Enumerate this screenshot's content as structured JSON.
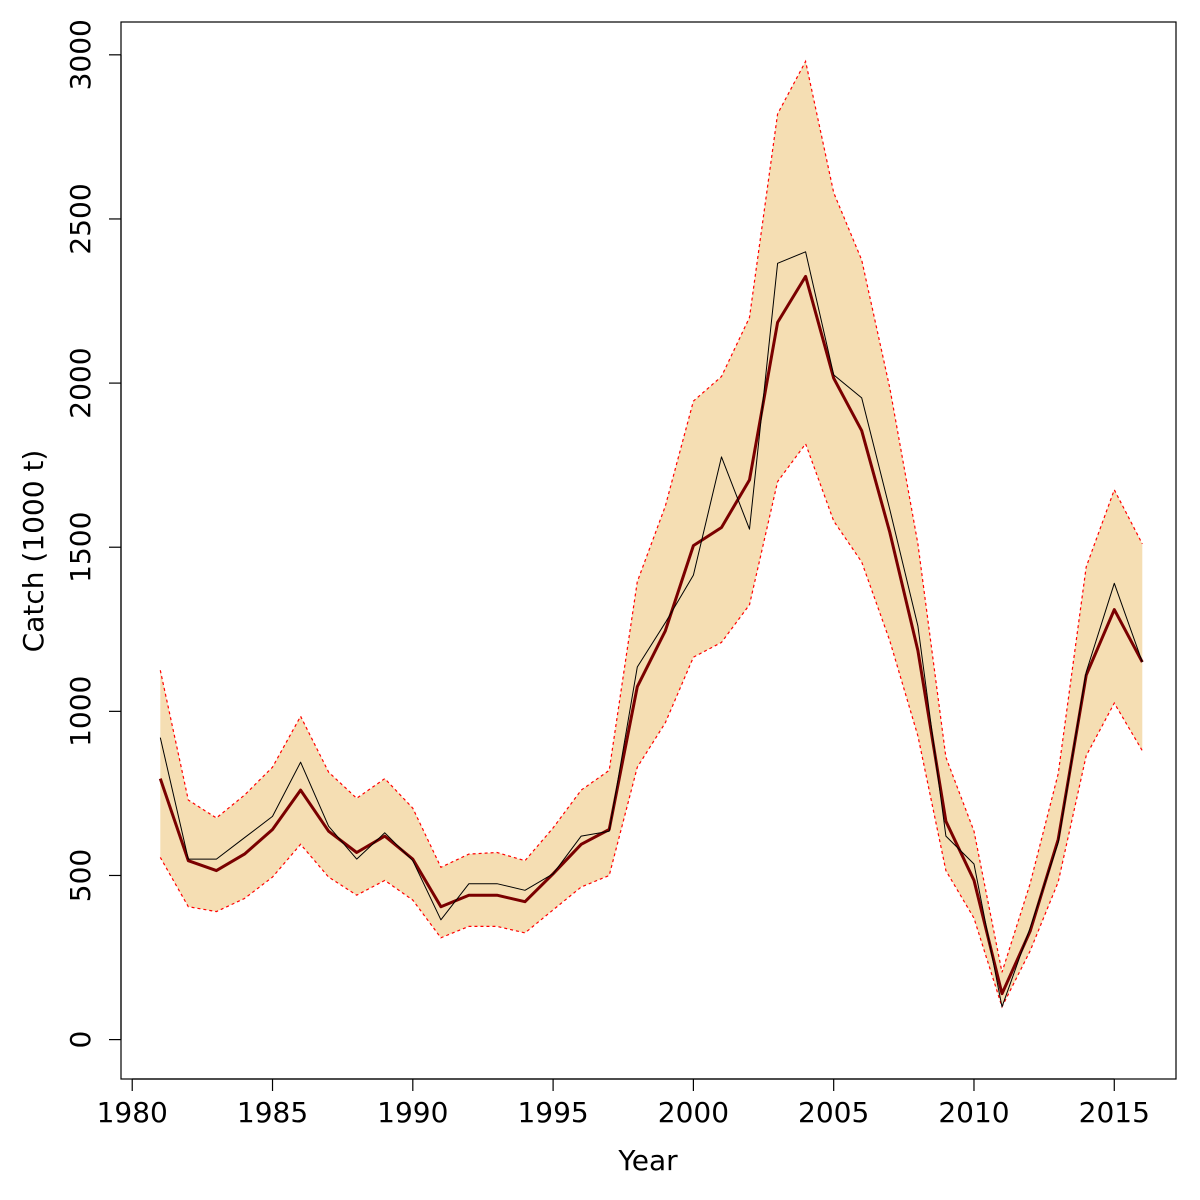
{
  "chart_data": {
    "type": "line",
    "xlabel": "Year",
    "ylabel": "Catch (1000 t)",
    "xlim": [
      1979.6,
      2017.2
    ],
    "ylim": [
      -120,
      3100
    ],
    "x_ticks": [
      1980,
      1985,
      1990,
      1995,
      2000,
      2005,
      2010,
      2015
    ],
    "y_ticks": [
      0,
      500,
      1000,
      1500,
      2000,
      2500,
      3000
    ],
    "x": [
      1981,
      1982,
      1983,
      1984,
      1985,
      1986,
      1987,
      1988,
      1989,
      1990,
      1991,
      1992,
      1993,
      1994,
      1995,
      1996,
      1997,
      1998,
      1999,
      2000,
      2001,
      2002,
      2003,
      2004,
      2005,
      2006,
      2007,
      2008,
      2009,
      2010,
      2011,
      2012,
      2013,
      2014,
      2015,
      2016
    ],
    "band": {
      "fill": "#f5deb3",
      "edge_color": "#ff0000",
      "upper": [
        1125,
        730,
        675,
        745,
        830,
        985,
        815,
        735,
        795,
        705,
        525,
        565,
        570,
        545,
        645,
        760,
        820,
        1395,
        1625,
        1945,
        2020,
        2200,
        2820,
        2980,
        2580,
        2375,
        1985,
        1510,
        860,
        635,
        205,
        475,
        810,
        1440,
        1675,
        1510
      ],
      "lower": [
        555,
        405,
        390,
        430,
        495,
        595,
        495,
        440,
        485,
        425,
        310,
        345,
        345,
        325,
        395,
        465,
        500,
        830,
        965,
        1165,
        1210,
        1325,
        1700,
        1815,
        1580,
        1455,
        1215,
        925,
        515,
        370,
        100,
        270,
        480,
        865,
        1025,
        880
      ]
    },
    "series": [
      {
        "values": [
          795,
          545,
          515,
          565,
          640,
          760,
          635,
          570,
          620,
          550,
          405,
          440,
          440,
          420,
          505,
          595,
          640,
          1075,
          1245,
          1505,
          1560,
          1705,
          2185,
          2325,
          2015,
          1855,
          1545,
          1185,
          665,
          485,
          140,
          330,
          610,
          1110,
          1310,
          1150
        ],
        "color": "#7a0000",
        "width": 3
      },
      {
        "values": [
          920,
          550,
          550,
          615,
          680,
          845,
          650,
          550,
          630,
          545,
          365,
          475,
          475,
          455,
          505,
          620,
          635,
          1135,
          1270,
          1415,
          1775,
          1555,
          2365,
          2400,
          2025,
          1955,
          1615,
          1260,
          620,
          535,
          100,
          340,
          600,
          1120,
          1390,
          1150
        ],
        "color": "#000000",
        "width": 1
      }
    ]
  }
}
